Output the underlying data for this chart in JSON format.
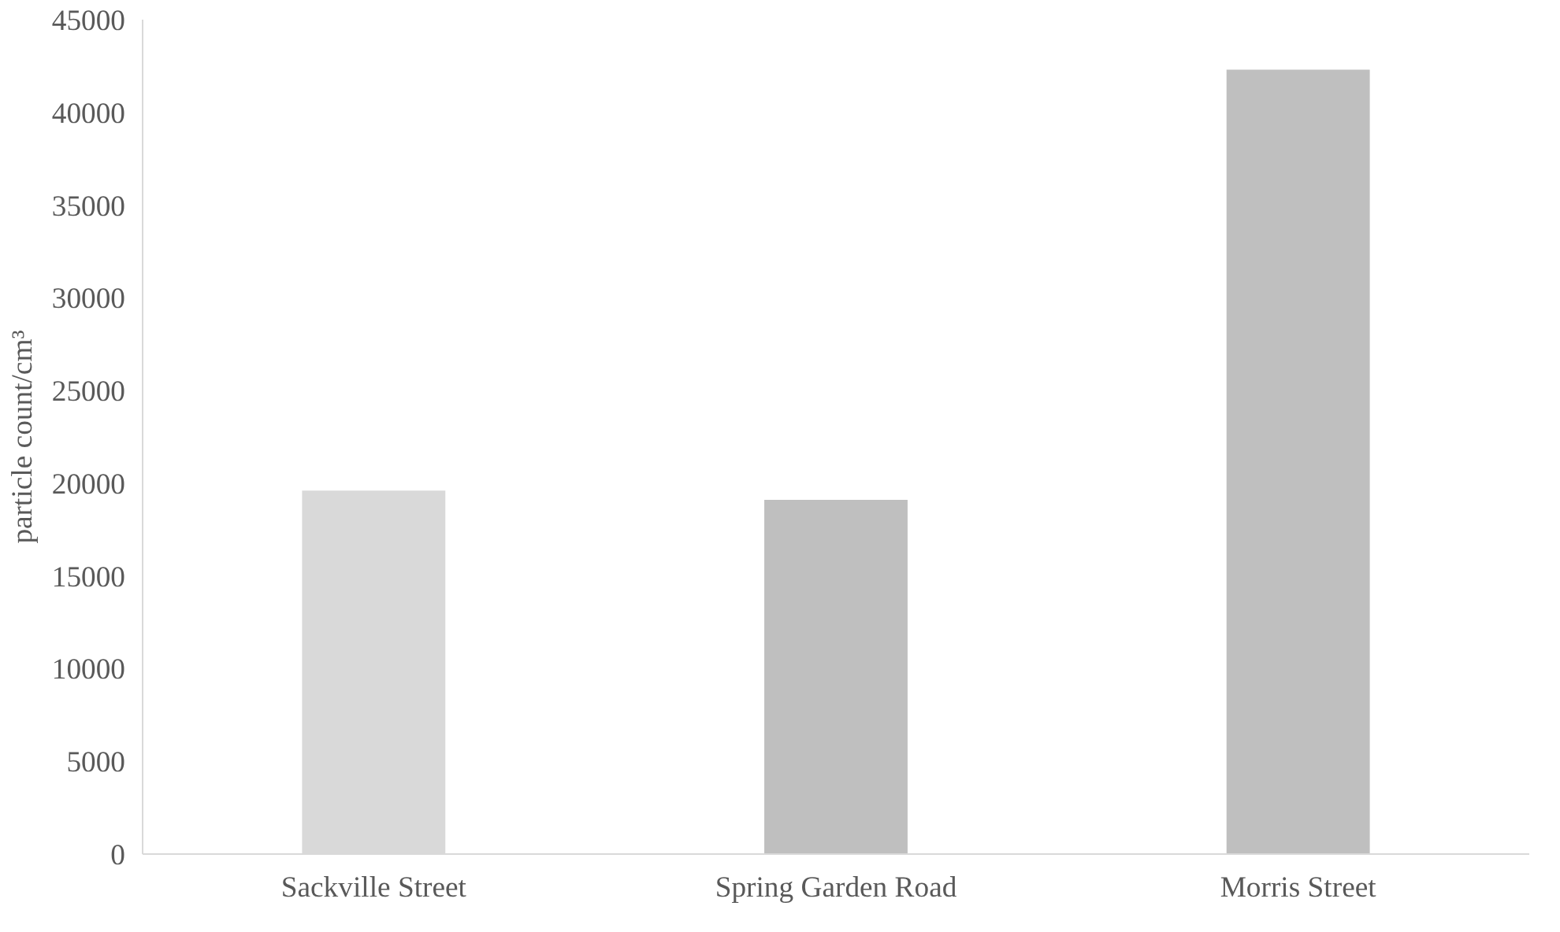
{
  "chart_data": {
    "type": "bar",
    "ylabel": "particle count/cm³",
    "categories": [
      "Sackville Street",
      "Spring Garden Road",
      "Morris Street"
    ],
    "values": [
      19600,
      19100,
      42300
    ],
    "colors": [
      "#d9d9d9",
      "#bfbfbf",
      "#bfbfbf"
    ],
    "ylim": [
      0,
      45000
    ],
    "yticks": [
      0,
      5000,
      10000,
      15000,
      20000,
      25000,
      30000,
      35000,
      40000,
      45000
    ],
    "grid": false
  }
}
